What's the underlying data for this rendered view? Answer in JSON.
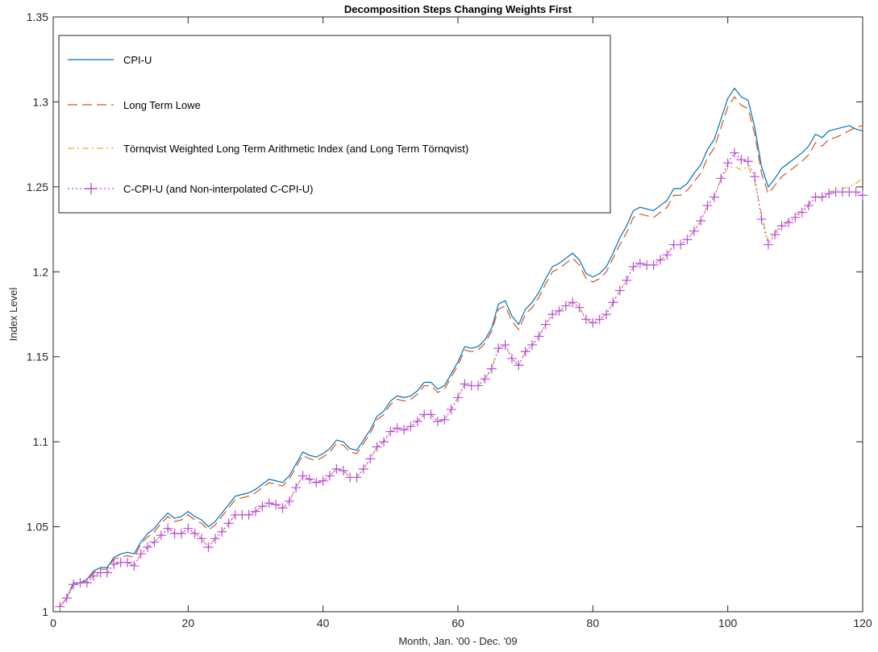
{
  "chart_data": {
    "type": "line",
    "title": "Decomposition Steps Changing Weights First",
    "xlabel": "Month, Jan. '00 - Dec. '09",
    "ylabel": "Index Level",
    "xlim": [
      0,
      120
    ],
    "ylim": [
      1,
      1.35
    ],
    "xticks": [
      0,
      20,
      40,
      60,
      80,
      100,
      120
    ],
    "xtick_labels": [
      "0",
      "20",
      "40",
      "60",
      "80",
      "100",
      "120"
    ],
    "yticks": [
      1,
      1.05,
      1.1,
      1.15,
      1.2,
      1.25,
      1.3,
      1.35
    ],
    "ytick_labels": [
      "1",
      "1.05",
      "1.1",
      "1.15",
      "1.2",
      "1.25",
      "1.3",
      "1.35"
    ],
    "grid": false,
    "legend_position": "top-left",
    "series": [
      {
        "name": "CPI-U",
        "color": "#0072BD",
        "style": "solid",
        "marker": "none",
        "x": [
          1,
          2,
          3,
          4,
          5,
          6,
          7,
          8,
          9,
          10,
          11,
          12,
          13,
          14,
          15,
          16,
          17,
          18,
          19,
          20,
          21,
          22,
          23,
          24,
          25,
          26,
          27,
          28,
          29,
          30,
          31,
          32,
          33,
          34,
          35,
          36,
          37,
          38,
          39,
          40,
          41,
          42,
          43,
          44,
          45,
          46,
          47,
          48,
          49,
          50,
          51,
          52,
          53,
          54,
          55,
          56,
          57,
          58,
          59,
          60,
          61,
          62,
          63,
          64,
          65,
          66,
          67,
          68,
          69,
          70,
          71,
          72,
          73,
          74,
          75,
          76,
          77,
          78,
          79,
          80,
          81,
          82,
          83,
          84,
          85,
          86,
          87,
          88,
          89,
          90,
          91,
          92,
          93,
          94,
          95,
          96,
          97,
          98,
          99,
          100,
          101,
          102,
          103,
          104,
          105,
          106,
          107,
          108,
          109,
          110,
          111,
          112,
          113,
          114,
          115,
          116,
          117,
          118,
          119,
          120
        ],
        "y": [
          1.003,
          1.008,
          1.017,
          1.017,
          1.019,
          1.024,
          1.026,
          1.026,
          1.032,
          1.034,
          1.035,
          1.034,
          1.041,
          1.046,
          1.049,
          1.054,
          1.058,
          1.055,
          1.056,
          1.059,
          1.056,
          1.054,
          1.05,
          1.053,
          1.058,
          1.063,
          1.068,
          1.069,
          1.07,
          1.072,
          1.075,
          1.078,
          1.077,
          1.076,
          1.08,
          1.087,
          1.094,
          1.092,
          1.091,
          1.093,
          1.096,
          1.101,
          1.1,
          1.096,
          1.095,
          1.101,
          1.107,
          1.115,
          1.118,
          1.124,
          1.127,
          1.126,
          1.127,
          1.13,
          1.135,
          1.135,
          1.131,
          1.133,
          1.14,
          1.147,
          1.156,
          1.155,
          1.156,
          1.16,
          1.167,
          1.181,
          1.183,
          1.174,
          1.169,
          1.178,
          1.182,
          1.188,
          1.196,
          1.203,
          1.205,
          1.208,
          1.211,
          1.207,
          1.199,
          1.197,
          1.199,
          1.203,
          1.211,
          1.22,
          1.227,
          1.236,
          1.238,
          1.237,
          1.236,
          1.239,
          1.242,
          1.249,
          1.249,
          1.252,
          1.258,
          1.263,
          1.272,
          1.278,
          1.29,
          1.302,
          1.308,
          1.303,
          1.301,
          1.285,
          1.262,
          1.25,
          1.255,
          1.261,
          1.264,
          1.267,
          1.27,
          1.274,
          1.281,
          1.279,
          1.283,
          1.284,
          1.285,
          1.286,
          1.284,
          1.283
        ]
      },
      {
        "name": "Long Term Lowe",
        "color": "#D95319",
        "style": "dashed",
        "marker": "none",
        "x": [
          1,
          2,
          3,
          4,
          5,
          6,
          7,
          8,
          9,
          10,
          11,
          12,
          13,
          14,
          15,
          16,
          17,
          18,
          19,
          20,
          21,
          22,
          23,
          24,
          25,
          26,
          27,
          28,
          29,
          30,
          31,
          32,
          33,
          34,
          35,
          36,
          37,
          38,
          39,
          40,
          41,
          42,
          43,
          44,
          45,
          46,
          47,
          48,
          49,
          50,
          51,
          52,
          53,
          54,
          55,
          56,
          57,
          58,
          59,
          60,
          61,
          62,
          63,
          64,
          65,
          66,
          67,
          68,
          69,
          70,
          71,
          72,
          73,
          74,
          75,
          76,
          77,
          78,
          79,
          80,
          81,
          82,
          83,
          84,
          85,
          86,
          87,
          88,
          89,
          90,
          91,
          92,
          93,
          94,
          95,
          96,
          97,
          98,
          99,
          100,
          101,
          102,
          103,
          104,
          105,
          106,
          107,
          108,
          109,
          110,
          111,
          112,
          113,
          114,
          115,
          116,
          117,
          118,
          119,
          120
        ],
        "y": [
          1.003,
          1.008,
          1.016,
          1.017,
          1.018,
          1.023,
          1.025,
          1.025,
          1.031,
          1.032,
          1.033,
          1.032,
          1.04,
          1.044,
          1.047,
          1.052,
          1.056,
          1.053,
          1.054,
          1.057,
          1.054,
          1.052,
          1.048,
          1.051,
          1.056,
          1.061,
          1.066,
          1.067,
          1.068,
          1.07,
          1.073,
          1.076,
          1.075,
          1.074,
          1.078,
          1.085,
          1.092,
          1.09,
          1.089,
          1.091,
          1.094,
          1.099,
          1.098,
          1.094,
          1.093,
          1.099,
          1.105,
          1.113,
          1.116,
          1.122,
          1.125,
          1.124,
          1.125,
          1.128,
          1.133,
          1.133,
          1.129,
          1.131,
          1.138,
          1.145,
          1.154,
          1.153,
          1.154,
          1.158,
          1.165,
          1.178,
          1.18,
          1.171,
          1.166,
          1.175,
          1.179,
          1.185,
          1.193,
          1.2,
          1.202,
          1.205,
          1.208,
          1.204,
          1.196,
          1.194,
          1.196,
          1.2,
          1.208,
          1.216,
          1.223,
          1.232,
          1.234,
          1.233,
          1.232,
          1.235,
          1.238,
          1.245,
          1.245,
          1.248,
          1.253,
          1.258,
          1.267,
          1.273,
          1.285,
          1.297,
          1.303,
          1.298,
          1.296,
          1.281,
          1.258,
          1.246,
          1.251,
          1.256,
          1.259,
          1.262,
          1.265,
          1.269,
          1.276,
          1.274,
          1.278,
          1.279,
          1.281,
          1.283,
          1.285,
          1.286
        ]
      },
      {
        "name": "Törnqvist Weighted Long Term Arithmetic Index (and Long Term Törnqvist)",
        "color": "#EDB120",
        "style": "dashdot",
        "marker": "none",
        "x": [
          1,
          2,
          3,
          4,
          5,
          6,
          7,
          8,
          9,
          10,
          11,
          12,
          13,
          14,
          15,
          16,
          17,
          18,
          19,
          20,
          21,
          22,
          23,
          24,
          25,
          26,
          27,
          28,
          29,
          30,
          31,
          32,
          33,
          34,
          35,
          36,
          37,
          38,
          39,
          40,
          41,
          42,
          43,
          44,
          45,
          46,
          47,
          48,
          49,
          50,
          51,
          52,
          53,
          54,
          55,
          56,
          57,
          58,
          59,
          60,
          61,
          62,
          63,
          64,
          65,
          66,
          67,
          68,
          69,
          70,
          71,
          72,
          73,
          74,
          75,
          76,
          77,
          78,
          79,
          80,
          81,
          82,
          83,
          84,
          85,
          86,
          87,
          88,
          89,
          90,
          91,
          92,
          93,
          94,
          95,
          96,
          97,
          98,
          99,
          100,
          101,
          102,
          103,
          104,
          105,
          106,
          107,
          108,
          109,
          110,
          111,
          112,
          113,
          114,
          115,
          116,
          117,
          118,
          119,
          120
        ],
        "y": [
          1.003,
          1.008,
          1.016,
          1.017,
          1.017,
          1.021,
          1.023,
          1.023,
          1.028,
          1.029,
          1.029,
          1.027,
          1.034,
          1.038,
          1.041,
          1.045,
          1.049,
          1.046,
          1.046,
          1.049,
          1.046,
          1.043,
          1.038,
          1.043,
          1.047,
          1.052,
          1.057,
          1.057,
          1.057,
          1.059,
          1.062,
          1.064,
          1.063,
          1.061,
          1.065,
          1.073,
          1.08,
          1.078,
          1.076,
          1.077,
          1.08,
          1.084,
          1.083,
          1.079,
          1.079,
          1.084,
          1.09,
          1.097,
          1.1,
          1.106,
          1.108,
          1.107,
          1.109,
          1.112,
          1.116,
          1.116,
          1.112,
          1.113,
          1.119,
          1.126,
          1.134,
          1.133,
          1.133,
          1.137,
          1.143,
          1.155,
          1.157,
          1.149,
          1.145,
          1.153,
          1.157,
          1.162,
          1.169,
          1.175,
          1.177,
          1.18,
          1.182,
          1.179,
          1.172,
          1.17,
          1.172,
          1.175,
          1.182,
          1.189,
          1.195,
          1.203,
          1.205,
          1.204,
          1.204,
          1.207,
          1.21,
          1.216,
          1.216,
          1.219,
          1.224,
          1.23,
          1.239,
          1.244,
          1.255,
          1.261,
          1.262,
          1.26,
          1.262,
          1.253,
          1.234,
          1.218,
          1.223,
          1.228,
          1.23,
          1.233,
          1.236,
          1.24,
          1.245,
          1.243,
          1.247,
          1.248,
          1.249,
          1.25,
          1.252,
          1.255
        ]
      },
      {
        "name": "C-CPI-U (and Non-interpolated C-CPI-U)",
        "color": "#B84FE0",
        "style": "dotted",
        "marker": "+",
        "x": [
          1,
          2,
          3,
          4,
          5,
          6,
          7,
          8,
          9,
          10,
          11,
          12,
          13,
          14,
          15,
          16,
          17,
          18,
          19,
          20,
          21,
          22,
          23,
          24,
          25,
          26,
          27,
          28,
          29,
          30,
          31,
          32,
          33,
          34,
          35,
          36,
          37,
          38,
          39,
          40,
          41,
          42,
          43,
          44,
          45,
          46,
          47,
          48,
          49,
          50,
          51,
          52,
          53,
          54,
          55,
          56,
          57,
          58,
          59,
          60,
          61,
          62,
          63,
          64,
          65,
          66,
          67,
          68,
          69,
          70,
          71,
          72,
          73,
          74,
          75,
          76,
          77,
          78,
          79,
          80,
          81,
          82,
          83,
          84,
          85,
          86,
          87,
          88,
          89,
          90,
          91,
          92,
          93,
          94,
          95,
          96,
          97,
          98,
          99,
          100,
          101,
          102,
          103,
          104,
          105,
          106,
          107,
          108,
          109,
          110,
          111,
          112,
          113,
          114,
          115,
          116,
          117,
          118,
          119,
          120
        ],
        "y": [
          1.003,
          1.008,
          1.016,
          1.017,
          1.017,
          1.021,
          1.023,
          1.023,
          1.028,
          1.029,
          1.029,
          1.027,
          1.034,
          1.038,
          1.041,
          1.045,
          1.049,
          1.046,
          1.046,
          1.049,
          1.046,
          1.043,
          1.038,
          1.043,
          1.047,
          1.052,
          1.057,
          1.057,
          1.057,
          1.059,
          1.062,
          1.064,
          1.063,
          1.061,
          1.065,
          1.073,
          1.08,
          1.078,
          1.076,
          1.077,
          1.08,
          1.084,
          1.083,
          1.079,
          1.079,
          1.084,
          1.09,
          1.097,
          1.1,
          1.106,
          1.108,
          1.107,
          1.109,
          1.112,
          1.116,
          1.116,
          1.112,
          1.113,
          1.119,
          1.126,
          1.134,
          1.133,
          1.133,
          1.137,
          1.143,
          1.155,
          1.157,
          1.149,
          1.145,
          1.153,
          1.157,
          1.162,
          1.169,
          1.175,
          1.177,
          1.18,
          1.182,
          1.179,
          1.172,
          1.17,
          1.172,
          1.175,
          1.182,
          1.189,
          1.195,
          1.203,
          1.205,
          1.204,
          1.204,
          1.207,
          1.21,
          1.216,
          1.216,
          1.219,
          1.224,
          1.23,
          1.239,
          1.244,
          1.255,
          1.264,
          1.27,
          1.266,
          1.265,
          1.256,
          1.231,
          1.216,
          1.222,
          1.227,
          1.229,
          1.232,
          1.235,
          1.239,
          1.244,
          1.244,
          1.246,
          1.247,
          1.247,
          1.247,
          1.247,
          1.245
        ]
      }
    ]
  }
}
